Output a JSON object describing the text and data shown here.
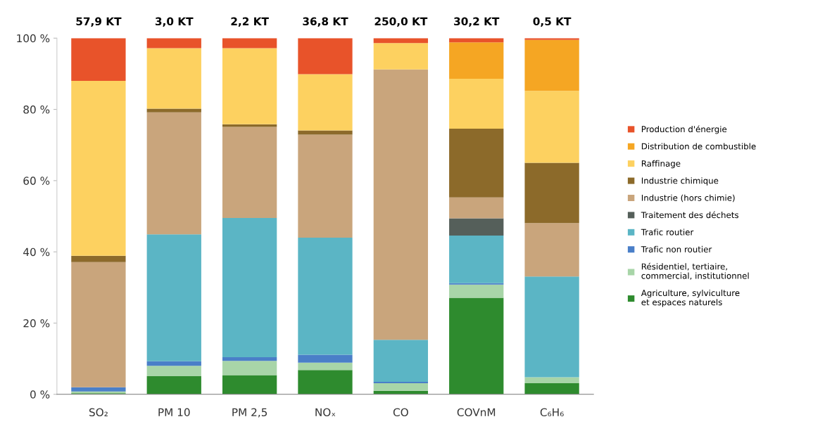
{
  "chart_data": {
    "type": "bar",
    "stacked": true,
    "categories": [
      "SO₂",
      "PM 10",
      "PM 2,5",
      "NOₓ",
      "CO",
      "COVnM",
      "C₆H₆"
    ],
    "annotations": [
      "57,9 KT",
      "3,0 KT",
      "2,2 KT",
      "36,8 KT",
      "250,0 KT",
      "30,2 KT",
      "0,5 KT"
    ],
    "series": [
      {
        "name": "Agriculture, sylviculture\net espaces naturels",
        "color": "#2e8b2e",
        "values": [
          0.3,
          5.1,
          5.4,
          6.8,
          1.0,
          27.1,
          3.1
        ]
      },
      {
        "name": "Résidentiel, tertiaire,\ncommercial, institutionnel",
        "color": "#a8d5a8",
        "values": [
          0.5,
          2.9,
          4.0,
          2.1,
          2.1,
          3.7,
          1.7
        ]
      },
      {
        "name": "Trafic non routier",
        "color": "#4a7fc8",
        "values": [
          1.2,
          1.3,
          1.0,
          2.2,
          0.4,
          0.4,
          0
        ]
      },
      {
        "name": "Trafic routier",
        "color": "#5bb5c5",
        "values": [
          0,
          35.6,
          39.1,
          32.9,
          11.8,
          13.4,
          28.3
        ]
      },
      {
        "name": "Traitement des déchets",
        "color": "#555f5a",
        "values": [
          0,
          0,
          0,
          0,
          0,
          4.8,
          0
        ]
      },
      {
        "name": "Industrie (hors chimie)",
        "color": "#c9a57c",
        "values": [
          35.1,
          34.3,
          25.6,
          28.9,
          75.9,
          5.9,
          15.0
        ]
      },
      {
        "name": "Industrie chimique",
        "color": "#8c6a2a",
        "values": [
          1.8,
          1.0,
          0.7,
          1.2,
          0,
          19.3,
          16.9
        ]
      },
      {
        "name": "Raffinage",
        "color": "#fdd160",
        "values": [
          49.1,
          17.0,
          21.4,
          15.8,
          7.4,
          14.0,
          20.2
        ]
      },
      {
        "name": "Distribution de combustible",
        "color": "#f5a623",
        "values": [
          0,
          0,
          0,
          0,
          0,
          10.2,
          14.3
        ]
      },
      {
        "name": "Production d'énergie",
        "color": "#e8532a",
        "values": [
          12.0,
          2.8,
          2.8,
          10.1,
          1.4,
          1.2,
          0.5
        ]
      }
    ],
    "ylim": [
      0,
      100
    ],
    "yticks": [
      {
        "value": 0,
        "label": "0 %"
      },
      {
        "value": 20,
        "label": "20 %"
      },
      {
        "value": 40,
        "label": "40 %"
      },
      {
        "value": 60,
        "label": "60 %"
      },
      {
        "value": 80,
        "label": "80 %"
      },
      {
        "value": 100,
        "label": "100 %"
      }
    ],
    "legend": "right",
    "grid": false
  }
}
